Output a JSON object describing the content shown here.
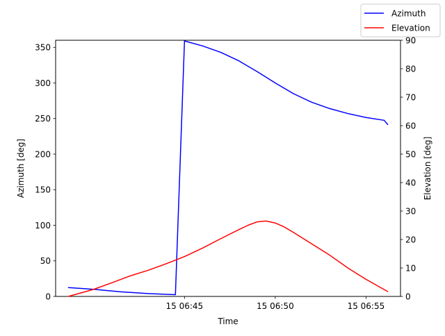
{
  "chart_data": {
    "type": "line",
    "x_label": "Time",
    "y_left_label": "Azimuth [deg]",
    "y_right_label": "Elevation [deg]",
    "x_unit": "minutes past 06:00",
    "x_range": [
      37.9,
      56.9
    ],
    "x_ticks": [
      {
        "value": 45,
        "label": "15 06:45"
      },
      {
        "value": 50,
        "label": "15 06:50"
      },
      {
        "value": 55,
        "label": "15 06:55"
      }
    ],
    "y_left_range": [
      0,
      360
    ],
    "y_left_ticks": [
      0,
      50,
      100,
      150,
      200,
      250,
      300,
      350
    ],
    "y_right_range": [
      0,
      90
    ],
    "y_right_ticks": [
      0,
      10,
      20,
      30,
      40,
      50,
      60,
      70,
      80,
      90
    ],
    "grid": false,
    "legend_position": "top-right",
    "series": [
      {
        "name": "Azimuth",
        "axis": "left",
        "color": "#0000ff",
        "x": [
          38.6,
          40.0,
          41.5,
          43.0,
          44.5,
          45.0,
          46.0,
          47.0,
          48.0,
          49.0,
          50.0,
          51.0,
          52.0,
          53.0,
          54.0,
          55.0,
          56.0,
          56.2
        ],
        "y": [
          12.5,
          10,
          6.5,
          4,
          2.5,
          359,
          352,
          343,
          331,
          316,
          300,
          285,
          273,
          264,
          257,
          251.5,
          247.5,
          241.5
        ]
      },
      {
        "name": "Elevation",
        "axis": "right",
        "color": "#ff0000",
        "x": [
          38.6,
          40.0,
          41.0,
          42.0,
          43.0,
          44.0,
          45.0,
          46.0,
          47.0,
          48.0,
          48.5,
          49.0,
          49.5,
          50.0,
          50.5,
          51.0,
          52.0,
          53.0,
          54.0,
          55.0,
          56.2
        ],
        "y": [
          0.0,
          2.5,
          4.8,
          7.2,
          9.2,
          11.5,
          14.0,
          17.0,
          20.3,
          23.5,
          25.0,
          26.2,
          26.5,
          25.8,
          24.4,
          22.5,
          18.5,
          14.5,
          10.0,
          6.0,
          1.7
        ]
      }
    ]
  }
}
